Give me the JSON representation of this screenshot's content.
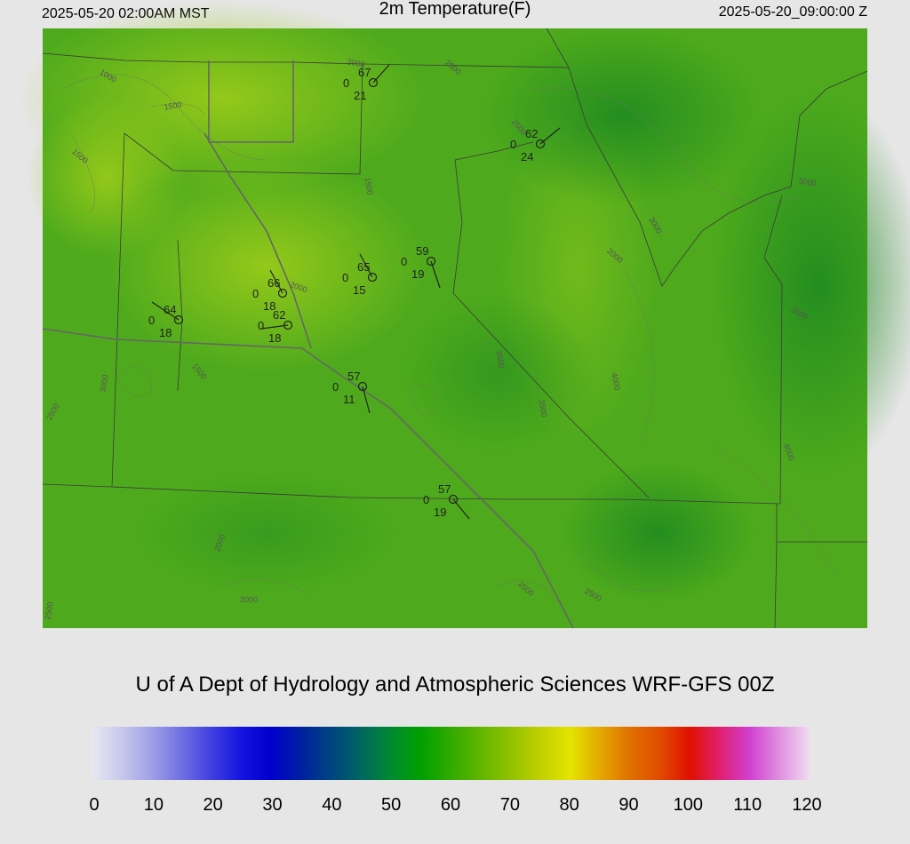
{
  "header": {
    "left": "2025-05-20 02:00AM MST",
    "title": "2m Temperature(F)",
    "right": "2025-05-20_09:00:00 Z"
  },
  "stations": [
    {
      "temperature": 67,
      "cloud": 0,
      "dewpoint": 21
    },
    {
      "temperature": 62,
      "cloud": 0,
      "dewpoint": 24
    },
    {
      "temperature": 59,
      "cloud": 0,
      "dewpoint": 19
    },
    {
      "temperature": 65,
      "cloud": 0,
      "dewpoint": 15
    },
    {
      "temperature": 66,
      "cloud": 0,
      "dewpoint": 18
    },
    {
      "temperature": 62,
      "cloud": 0,
      "dewpoint": 18
    },
    {
      "temperature": 64,
      "cloud": 0,
      "dewpoint": 18
    },
    {
      "temperature": 57,
      "cloud": 0,
      "dewpoint": 11
    },
    {
      "temperature": 57,
      "cloud": 0,
      "dewpoint": 19
    }
  ],
  "contour_labels": [
    1000,
    1500,
    1500,
    2000,
    2500,
    1500,
    1500,
    2000,
    2500,
    3000,
    2500,
    3000,
    3500,
    4000,
    3500,
    2000,
    2500,
    2500,
    2000,
    3000,
    3500,
    4000,
    2000,
    2500
  ],
  "footer": "U of A Dept of Hydrology and Atmospheric Sciences WRF-GFS 00Z",
  "colorbar": {
    "range": [
      0,
      120
    ],
    "ticks": [
      0,
      10,
      20,
      30,
      40,
      50,
      60,
      70,
      80,
      90,
      100,
      110,
      120
    ],
    "colors": [
      "#e8e8f2",
      "#c8c8ec",
      "#a0a0e6",
      "#7070e2",
      "#4040e0",
      "#1414e0",
      "#0000cc",
      "#0020a0",
      "#004480",
      "#006660",
      "#008a30",
      "#00a000",
      "#30aa00",
      "#60b600",
      "#90c200",
      "#c0d000",
      "#e4e400",
      "#e4a800",
      "#e07000",
      "#e04c00",
      "#e01000",
      "#e02070",
      "#d040d0",
      "#e090e0",
      "#f0dcf0"
    ]
  }
}
